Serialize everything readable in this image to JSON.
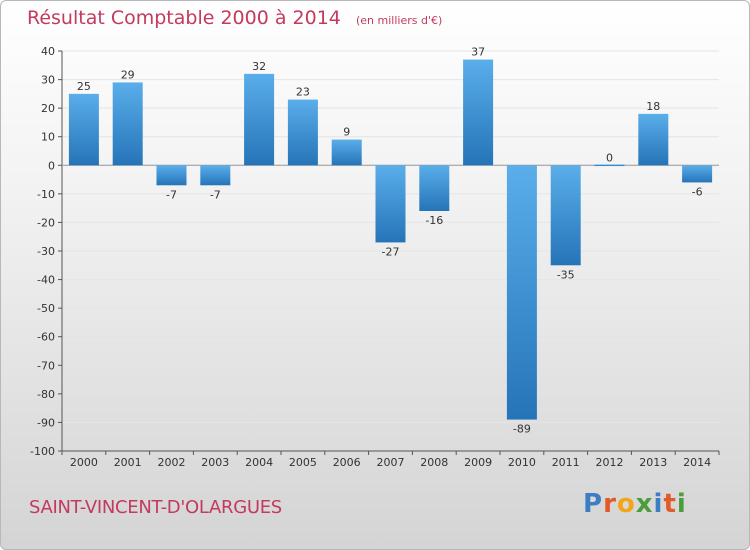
{
  "header": {
    "title": "Résultat Comptable 2000 à 2014",
    "subtitle": "(en milliers d'€)"
  },
  "footer": {
    "commune": "SAINT-VINCENT-D'OLARGUES",
    "brand_letters": [
      {
        "char": "P",
        "color": "#3d7dc4"
      },
      {
        "char": "r",
        "color": "#e05a2a"
      },
      {
        "char": "o",
        "color": "#f2a516"
      },
      {
        "char": "x",
        "color": "#4a9d3a"
      },
      {
        "char": "i",
        "color": "#3d7dc4"
      },
      {
        "char": "t",
        "color": "#e05a2a"
      },
      {
        "char": "i",
        "color": "#4a9d3a"
      }
    ]
  },
  "colors": {
    "bar_light": "#5aaeea",
    "bar_dark": "#2574b8",
    "axis": "#555555",
    "grid": "#e4e4e4"
  },
  "chart_data": {
    "type": "bar",
    "categories": [
      "2000",
      "2001",
      "2002",
      "2003",
      "2004",
      "2005",
      "2006",
      "2007",
      "2008",
      "2009",
      "2010",
      "2011",
      "2012",
      "2013",
      "2014"
    ],
    "values": [
      25,
      29,
      -7,
      -7,
      32,
      23,
      9,
      -27,
      -16,
      37,
      -89,
      -35,
      0,
      18,
      -6
    ],
    "value_labels": [
      "25",
      "29",
      "-7",
      "-7",
      "32",
      "23",
      "9",
      "-27",
      "-16",
      "37",
      "-89",
      "-35",
      "0",
      "18",
      "-6"
    ],
    "ylim": [
      -100,
      40
    ],
    "yticks": [
      40,
      30,
      20,
      10,
      0,
      -10,
      -20,
      -30,
      -40,
      -50,
      -60,
      -70,
      -80,
      -90,
      -100
    ],
    "ytick_labels": [
      "40",
      "30",
      "20",
      "10",
      "0",
      "-10",
      "-20",
      "-30",
      "-40",
      "-50",
      "-60",
      "-70",
      "-80",
      "-90",
      "-100"
    ],
    "grid": true
  }
}
